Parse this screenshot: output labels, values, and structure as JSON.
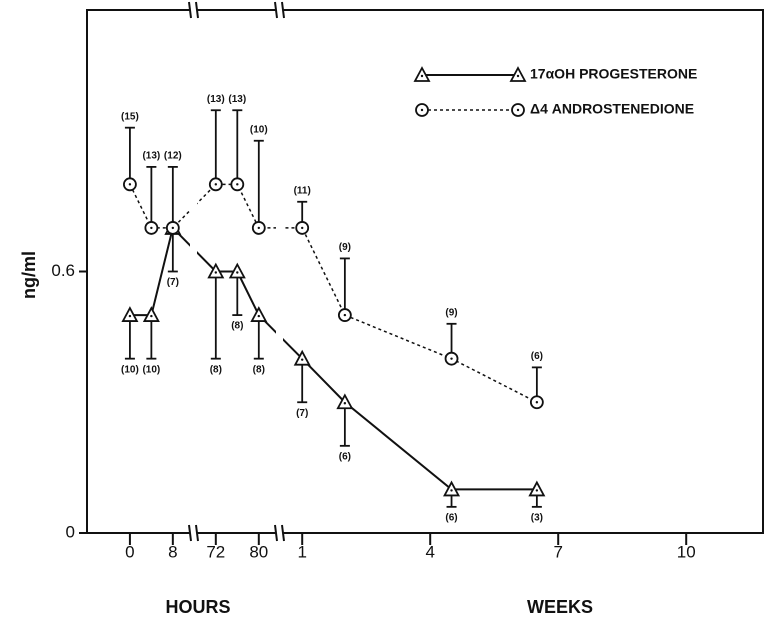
{
  "chart_data": {
    "type": "line",
    "y_label": "ng/ml",
    "ylim": [
      0,
      1.2
    ],
    "yticks": [
      0,
      0.6
    ],
    "x_axes": [
      {
        "title": "HOURS",
        "segments": [
          {
            "xlim": [
              -8,
              11.2
            ],
            "xticks": [
              0,
              8
            ]
          },
          {
            "xlim": [
              68.5,
              83.2
            ],
            "xticks": [
              72,
              80
            ]
          }
        ]
      },
      {
        "title": "WEEKS",
        "segments": [
          {
            "xlim": [
              0.55,
              11.8
            ],
            "xticks": [
              1,
              4,
              7,
              10
            ]
          }
        ]
      }
    ],
    "legend": "top right",
    "series": [
      {
        "name": "17αOH PROGESTERONE",
        "color": "#111111",
        "line": "solid",
        "marker": "triangle",
        "error_direction": "down",
        "segments": [
          0,
          0,
          0,
          1,
          1,
          1,
          2,
          2,
          2,
          2
        ],
        "x": [
          0,
          4,
          8,
          72,
          76,
          80,
          1,
          2,
          4.5,
          6.5
        ],
        "values": [
          0.5,
          0.5,
          0.7,
          0.6,
          0.6,
          0.5,
          0.4,
          0.3,
          0.1,
          0.1
        ],
        "errors": [
          0.1,
          0.1,
          0.1,
          0.2,
          0.1,
          0.1,
          0.1,
          0.1,
          0.04,
          0.04
        ],
        "n_labels": [
          "(10)",
          "(10)",
          "(7)",
          "(8)",
          "(8)",
          "(8)",
          "(7)",
          "(6)",
          "(6)",
          "(3)"
        ]
      },
      {
        "name": "Δ4 ANDROSTENEDIONE",
        "color": "#111111",
        "line": "dotted",
        "marker": "circle",
        "error_direction": "up",
        "segments": [
          0,
          0,
          0,
          1,
          1,
          1,
          2,
          2,
          2,
          2
        ],
        "x": [
          0,
          4,
          8,
          72,
          76,
          80,
          1,
          2,
          4.5,
          6.5
        ],
        "values": [
          0.8,
          0.7,
          0.7,
          0.8,
          0.8,
          0.7,
          0.7,
          0.5,
          0.4,
          0.3
        ],
        "errors": [
          0.13,
          0.14,
          0.14,
          0.17,
          0.17,
          0.2,
          0.06,
          0.13,
          0.08,
          0.08
        ],
        "n_labels": [
          "(15)",
          "(13)",
          "(12)",
          "(13)",
          "(13)",
          "(10)",
          "(11)",
          "(9)",
          "(9)",
          "(6)"
        ]
      }
    ]
  }
}
